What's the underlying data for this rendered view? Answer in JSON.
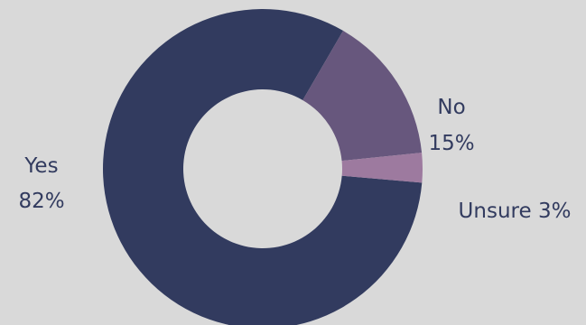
{
  "chart_data": {
    "type": "pie",
    "donut": true,
    "slices": [
      {
        "category": "Yes",
        "value": 82,
        "value_label": "82%",
        "color": "#323b5f"
      },
      {
        "category": "No",
        "value": 15,
        "value_label": "15%",
        "color": "#67577d"
      },
      {
        "category": "Unsure",
        "value": 3,
        "value_label": "3%",
        "color": "#9d7a9f"
      }
    ],
    "label_color": "#323b5f",
    "background": "#d9d9d9"
  }
}
